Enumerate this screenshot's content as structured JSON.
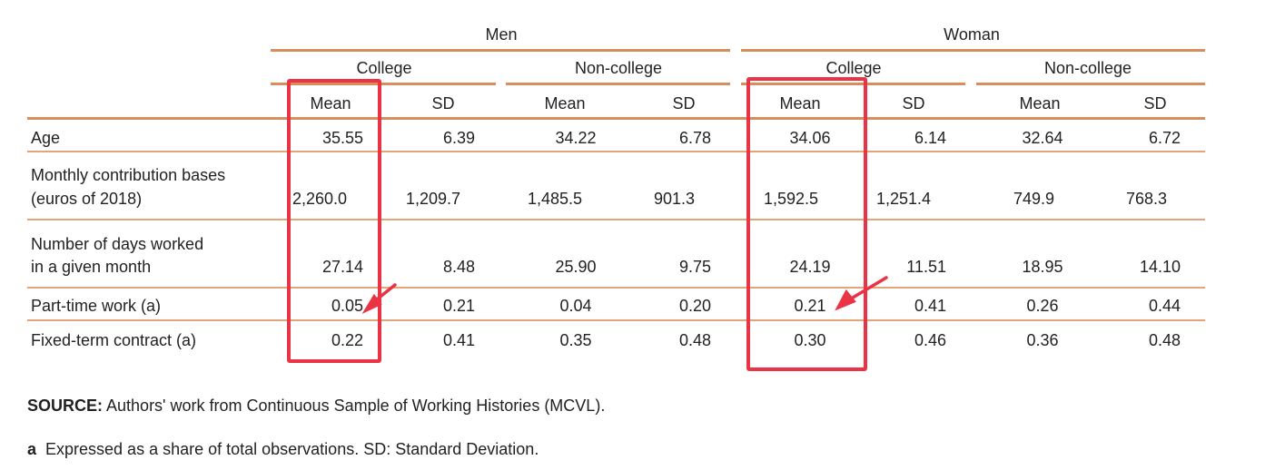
{
  "groups": [
    {
      "label": "Men",
      "subgroups": [
        "College",
        "Non-college"
      ]
    },
    {
      "label": "Woman",
      "subgroups": [
        "College",
        "Non-college"
      ]
    }
  ],
  "stat_headers": [
    "Mean",
    "SD",
    "Mean",
    "SD",
    "Mean",
    "SD",
    "Mean",
    "SD"
  ],
  "rows": [
    {
      "label": [
        "Age"
      ],
      "values": [
        "35.55",
        "6.39",
        "34.22",
        "6.78",
        "34.06",
        "6.14",
        "32.64",
        "6.72"
      ]
    },
    {
      "label": [
        "Monthly contribution bases",
        "(euros of 2018)"
      ],
      "values": [
        "2,260.0",
        "1,209.7",
        "1,485.5",
        "901.3",
        "1,592.5",
        "1,251.4",
        "749.9",
        "768.3"
      ]
    },
    {
      "label": [
        "Number of days worked",
        "in a given month"
      ],
      "values": [
        "27.14",
        "8.48",
        "25.90",
        "9.75",
        "24.19",
        "11.51",
        "18.95",
        "14.10"
      ]
    },
    {
      "label": [
        "Part-time work (a)"
      ],
      "values": [
        "0.05",
        "0.21",
        "0.04",
        "0.20",
        "0.21",
        "0.41",
        "0.26",
        "0.44"
      ]
    },
    {
      "label": [
        "Fixed-term contract (a)"
      ],
      "values": [
        "0.22",
        "0.41",
        "0.35",
        "0.48",
        "0.30",
        "0.46",
        "0.36",
        "0.48"
      ]
    }
  ],
  "notes": {
    "source_label": "SOURCE:",
    "source_text": " Authors' work from Continuous Sample of Working Histories (MCVL).",
    "footnote_label": "a",
    "footnote_text": "  Expressed as a share of total observations. SD: Standard Deviation."
  },
  "annotation_color": "#ea3344",
  "rule_color": "#e2a47c"
}
